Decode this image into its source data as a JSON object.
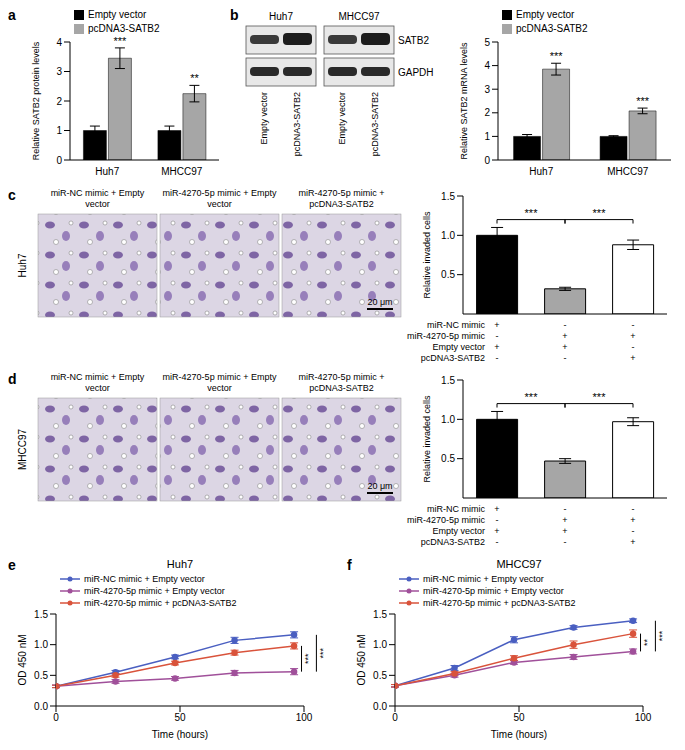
{
  "chart_data": [
    {
      "panel": "a",
      "type": "bar",
      "categories": [
        "Huh7",
        "MHCC97"
      ],
      "y_label": "Relative SATB2 protein levels",
      "ylim": [
        0,
        4
      ],
      "yticks": [
        0,
        1,
        2,
        3,
        4
      ],
      "legend": "top-left",
      "series": [
        {
          "name": "Empty vector",
          "color": "#000000",
          "values": [
            1,
            1
          ],
          "errors": [
            0.15,
            0.15
          ]
        },
        {
          "name": "pcDNA3-SATB2",
          "color": "#a6a6a6",
          "values": [
            3.45,
            2.25
          ],
          "errors": [
            0.35,
            0.28
          ],
          "significance": [
            "***",
            "**"
          ]
        }
      ]
    },
    {
      "panel": "b",
      "type": "blot",
      "cell_lines": [
        "Huh7",
        "MHCC97"
      ],
      "lanes": [
        "Empty vector",
        "pcDNA3-SATB2"
      ],
      "proteins": [
        "SATB2",
        "GAPDH"
      ]
    },
    {
      "type": "bar",
      "categories": [
        "Huh7",
        "MHCC97"
      ],
      "y_label": "Relative SATB2 mRNA levels",
      "ylim": [
        0,
        5
      ],
      "yticks": [
        0,
        1,
        2,
        3,
        4,
        5
      ],
      "legend": "top-left",
      "series": [
        {
          "name": "Empty vector",
          "color": "#000000",
          "values": [
            1,
            1
          ],
          "errors": [
            0.08,
            0.03
          ]
        },
        {
          "name": "pcDNA3-SATB2",
          "color": "#a6a6a6",
          "values": [
            3.85,
            2.08
          ],
          "errors": [
            0.25,
            0.12
          ],
          "significance": [
            "***",
            "***"
          ]
        }
      ]
    },
    {
      "panel": "c",
      "type": "image",
      "row_label": "Huh7",
      "columns": [
        "miR-NC mimic + Empty vector",
        "miR-4270-5p mimic + Empty vector",
        "miR-4270-5p mimic + pcDNA3-SATB2"
      ],
      "scale_bar": "20 μm"
    },
    {
      "type": "bar",
      "categories": [
        null,
        null,
        null
      ],
      "values": [
        1,
        0.32,
        0.88
      ],
      "errors": [
        0.1,
        0.02,
        0.06
      ],
      "colors": [
        "#000000",
        "#a6a6a6",
        "#ffffff"
      ],
      "y_label": "Relative invaded cells",
      "ylim": [
        0,
        1.5
      ],
      "yticks": [
        {
          "value": 0,
          "label": "0.0"
        },
        {
          "value": 0.5,
          "label": "0.5"
        },
        {
          "value": 1,
          "label": "1.0"
        },
        {
          "value": 1.5,
          "label": "1.5"
        }
      ],
      "comparisons": [
        {
          "bars": [
            0,
            1
          ],
          "label": "***"
        },
        {
          "bars": [
            1,
            2
          ],
          "label": "***"
        }
      ],
      "conditions": [
        {
          "label": "miR-NC mimic",
          "marks": [
            "+",
            "-",
            "-"
          ]
        },
        {
          "label": "miR-4270-5p mimic",
          "marks": [
            "-",
            "+",
            "+"
          ]
        },
        {
          "label": "Empty vector",
          "marks": [
            "+",
            "+",
            "-"
          ]
        },
        {
          "label": "pcDNA3-SATB2",
          "marks": [
            "-",
            "-",
            "+"
          ]
        }
      ]
    },
    {
      "panel": "d",
      "type": "image",
      "row_label": "MHCC97",
      "columns": [
        "miR-NC mimic + Empty vector",
        "miR-4270-5p mimic + Empty vector",
        "miR-4270-5p mimic + pcDNA3-SATB2"
      ],
      "scale_bar": "20 μm"
    },
    {
      "type": "bar",
      "categories": [
        null,
        null,
        null
      ],
      "values": [
        1,
        0.47,
        0.97
      ],
      "errors": [
        0.1,
        0.03,
        0.05
      ],
      "colors": [
        "#000000",
        "#a6a6a6",
        "#ffffff"
      ],
      "y_label": "Relative invaded cells",
      "ylim": [
        0,
        1.5
      ],
      "yticks": [
        {
          "value": 0,
          "label": "0.0"
        },
        {
          "value": 0.5,
          "label": "0.5"
        },
        {
          "value": 1,
          "label": "1.0"
        },
        {
          "value": 1.5,
          "label": "1.5"
        }
      ],
      "comparisons": [
        {
          "bars": [
            0,
            1
          ],
          "label": "***"
        },
        {
          "bars": [
            1,
            2
          ],
          "label": "***"
        }
      ],
      "conditions": [
        {
          "label": "miR-NC mimic",
          "marks": [
            "+",
            "-",
            "-"
          ]
        },
        {
          "label": "miR-4270-5p mimic",
          "marks": [
            "-",
            "+",
            "+"
          ]
        },
        {
          "label": "Empty vector",
          "marks": [
            "+",
            "+",
            "-"
          ]
        },
        {
          "label": "pcDNA3-SATB2",
          "marks": [
            "-",
            "-",
            "+"
          ]
        }
      ]
    },
    {
      "panel": "e",
      "type": "line",
      "title": "Huh7",
      "x": [
        0,
        24,
        48,
        72,
        96
      ],
      "xlim": [
        0,
        100
      ],
      "xticks": [
        0,
        50,
        100
      ],
      "ylim": [
        0,
        1.5
      ],
      "yticks": [
        {
          "value": 0,
          "label": "0.0"
        },
        {
          "value": 0.5,
          "label": "0.5"
        },
        {
          "value": 1,
          "label": "1.0"
        },
        {
          "value": 1.5,
          "label": "1.5"
        }
      ],
      "x_label": "Time (hours)",
      "y_label": "OD 450 nM",
      "marker": "circle",
      "legend": "top-left",
      "series": [
        {
          "name": "miR-NC mimic + Empty vector",
          "color": "#4a5fc1",
          "values": [
            0.32,
            0.55,
            0.8,
            1.07,
            1.16
          ],
          "errors": [
            0.02,
            0.03,
            0.03,
            0.05,
            0.05
          ]
        },
        {
          "name": "miR-4270-5p mimic + Empty vector",
          "color": "#a0509a",
          "values": [
            0.32,
            0.4,
            0.45,
            0.54,
            0.56
          ],
          "errors": [
            0.02,
            0.03,
            0.03,
            0.04,
            0.05
          ]
        },
        {
          "name": "miR-4270-5p mimic + pcDNA3-SATB2",
          "color": "#d9533b",
          "values": [
            0.32,
            0.5,
            0.7,
            0.87,
            0.98
          ],
          "errors": [
            0.02,
            0.03,
            0.03,
            0.04,
            0.05
          ]
        }
      ],
      "comparisons": [
        {
          "series": [
            1,
            2
          ],
          "label": "***"
        },
        {
          "series": [
            0,
            1
          ],
          "label": "***"
        }
      ]
    },
    {
      "panel": "f",
      "type": "line",
      "title": "MHCC97",
      "x": [
        0,
        24,
        48,
        72,
        96
      ],
      "xlim": [
        0,
        100
      ],
      "xticks": [
        0,
        50,
        100
      ],
      "ylim": [
        0,
        1.5
      ],
      "yticks": [
        {
          "value": 0,
          "label": "0.0"
        },
        {
          "value": 0.5,
          "label": "0.5"
        },
        {
          "value": 1,
          "label": "1.0"
        },
        {
          "value": 1.5,
          "label": "1.5"
        }
      ],
      "x_label": "Time (hours)",
      "y_label": "OD 450 nM",
      "marker": "circle",
      "legend": "top-left",
      "series": [
        {
          "name": "miR-NC mimic + Empty vector",
          "color": "#4a5fc1",
          "values": [
            0.33,
            0.62,
            1.08,
            1.28,
            1.39
          ],
          "errors": [
            0.02,
            0.04,
            0.05,
            0.03,
            0.03
          ]
        },
        {
          "name": "miR-4270-5p mimic + Empty vector",
          "color": "#a0509a",
          "values": [
            0.33,
            0.5,
            0.71,
            0.8,
            0.89
          ],
          "errors": [
            0.02,
            0.03,
            0.03,
            0.04,
            0.04
          ]
        },
        {
          "name": "miR-4270-5p mimic + pcDNA3-SATB2",
          "color": "#d9533b",
          "values": [
            0.33,
            0.53,
            0.78,
            1.0,
            1.18
          ],
          "errors": [
            0.02,
            0.03,
            0.04,
            0.06,
            0.06
          ]
        }
      ],
      "comparisons": [
        {
          "series": [
            1,
            2
          ],
          "label": "**"
        },
        {
          "series": [
            0,
            1
          ],
          "label": "***"
        }
      ]
    }
  ]
}
